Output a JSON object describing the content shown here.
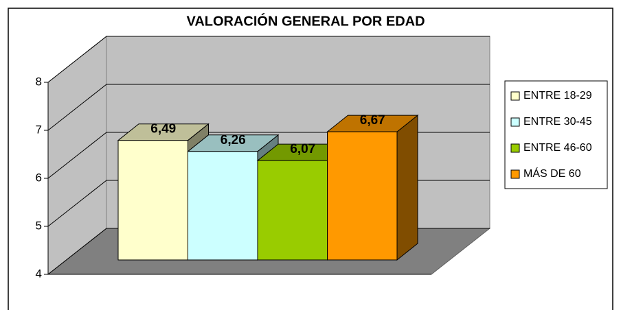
{
  "chart_data": {
    "type": "bar3d",
    "title": "VALORACIÓN GENERAL POR EDAD",
    "categories": [
      null
    ],
    "series": [
      {
        "name": "ENTRE 18-29",
        "color": "#ffffcc",
        "values": [
          6.49
        ],
        "value_labels": [
          "6,49"
        ]
      },
      {
        "name": "ENTRE 30-45",
        "color": "#ccffff",
        "values": [
          6.26
        ],
        "value_labels": [
          "6,26"
        ]
      },
      {
        "name": "ENTRE 46-60",
        "color": "#99cc00",
        "values": [
          6.07
        ],
        "value_labels": [
          "6,07"
        ]
      },
      {
        "name": "MÁS DE 60",
        "color": "#ff9900",
        "values": [
          6.67
        ],
        "value_labels": [
          "6,67"
        ]
      }
    ],
    "ylim": [
      4,
      8
    ],
    "yticks": [
      4,
      5,
      6,
      7,
      8
    ],
    "grid": true,
    "legend": "right"
  }
}
